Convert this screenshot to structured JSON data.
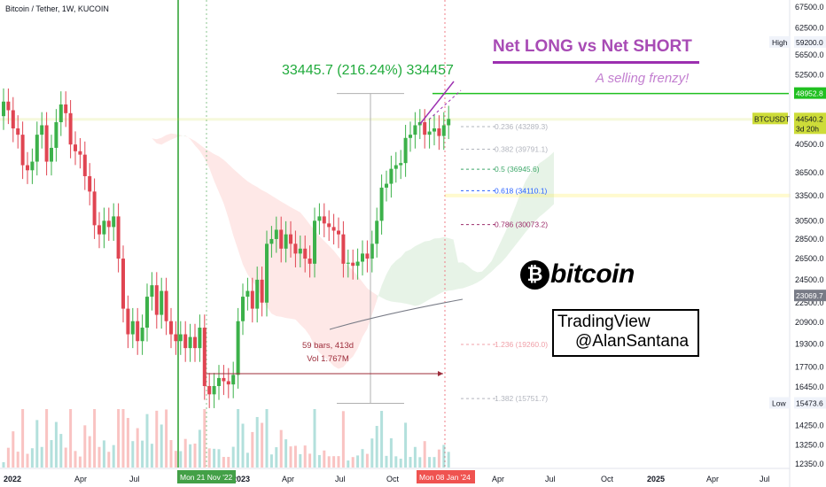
{
  "header": {
    "title": "Bitcoin / Tether, 1W, KUCOIN"
  },
  "annotations": {
    "headline": "Net LONG vs Net SHORT",
    "subline": "A selling frenzy!",
    "measure": "33445.7 (216.24%) 334457",
    "bars_count": "59 bars, 413d",
    "volume": "Vol 1.767M",
    "tv_line1": "TradingView",
    "tv_line2": "@AlanSantana",
    "brand_word": "bitcoin",
    "brand_icon": "bitcoin-icon"
  },
  "axis_tags": {
    "high_label": "High",
    "high_value": "59200.0",
    "target_value": "48952.8",
    "symbol": "BTCUSDT",
    "price": "44540.2",
    "countdown": "3d 20h",
    "gray_value": "23069.7",
    "low_label": "Low",
    "low_value": "15473.6"
  },
  "x_tags": {
    "start": "Mon 21 Nov '22",
    "end": "Mon 08 Jan '24"
  },
  "colors": {
    "up": "#26a69a",
    "up_candle": "#3cb14a",
    "down": "#ef5350",
    "down_candle": "#e04552",
    "target": "#20c020",
    "purple": "#9c2fb0",
    "fib_gray": "#b2b5be"
  },
  "chart_data": {
    "type": "candlestick",
    "title": "Bitcoin / Tether, 1W, KUCOIN",
    "y_scale": "log",
    "y_ticks": [
      67500,
      62500,
      59200,
      56500,
      52500,
      48952.8,
      44540.2,
      40500,
      36500,
      33500,
      30500,
      28500,
      26500,
      24500,
      23069.7,
      22500,
      20900,
      19300,
      17700,
      16450,
      15473.6,
      14250,
      13250,
      12350
    ],
    "x_ticks": [
      "2022",
      "Apr",
      "Jul",
      "Oct",
      "2023",
      "Apr",
      "Jul",
      "Oct",
      "Apr",
      "Jul",
      "Oct",
      "2025",
      "Apr",
      "Jul"
    ],
    "fib_levels": [
      {
        "ratio": "0.236",
        "value": 43289.3,
        "label": "0.236 (43289.3)",
        "color": "#b2b5be"
      },
      {
        "ratio": "0.382",
        "value": 39791.1,
        "label": "0.382 (39791.1)",
        "color": "#b2b5be"
      },
      {
        "ratio": "0.5",
        "value": 36945.6,
        "label": "0.5 (36945.6)",
        "color": "#3fa86b"
      },
      {
        "ratio": "0.618",
        "value": 34110.1,
        "label": "0.618 (34110.1)",
        "color": "#2962ff"
      },
      {
        "ratio": "0.786",
        "value": 30073.2,
        "label": "0.786 (30073.2)",
        "color": "#9c2c6a"
      },
      {
        "ratio": "1.236",
        "value": 19260.0,
        "label": "1.236 (19260.0)",
        "color": "#f0a0a8"
      },
      {
        "ratio": "1.382",
        "value": 15751.7,
        "label": "1.382 (15751.7)",
        "color": "#b2b5be"
      }
    ],
    "weekly_close_path": [
      47500,
      46000,
      43000,
      42000,
      37500,
      36800,
      38000,
      42000,
      43500,
      38000,
      40000,
      44000,
      47000,
      45500,
      40500,
      39500,
      39000,
      36000,
      34000,
      30000,
      29000,
      30500,
      29800,
      31000,
      26500,
      22000,
      20000,
      21000,
      19500,
      20500,
      23000,
      24000,
      21500,
      23500,
      21000,
      20000,
      19500,
      20000,
      19000,
      19800,
      19000,
      20500,
      16500,
      16000,
      16500,
      17000,
      16800,
      16600,
      17200,
      21000,
      23000,
      23500,
      22000,
      24500,
      22500,
      28000,
      28500,
      29500,
      27500,
      29000,
      28000,
      27000,
      27500,
      26500,
      26000,
      30500,
      31000,
      30200,
      29800,
      29400,
      29000,
      26000,
      26100,
      25800,
      26200,
      27000,
      26500,
      28000,
      30500,
      34500,
      35000,
      37000,
      37500,
      37800,
      41500,
      42000,
      43500,
      44000,
      42000,
      42500,
      43000,
      41800,
      43500,
      44540
    ]
  }
}
